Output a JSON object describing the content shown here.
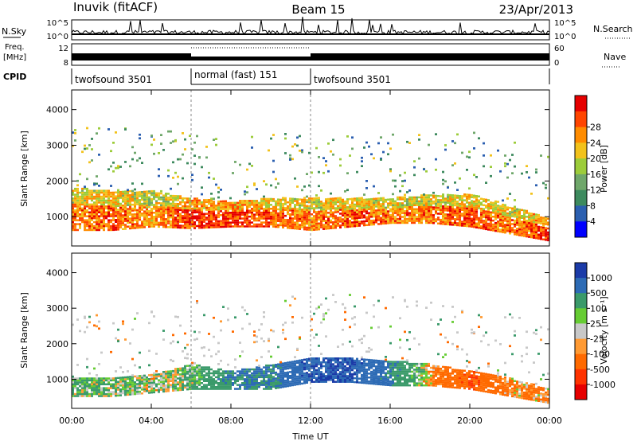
{
  "header": {
    "station": "Inuvik (fitACF)",
    "beam": "Beam 15",
    "date": "23/Apr/2013"
  },
  "top_panels": {
    "nsky_label": "N.Sky",
    "nsky_ticks": [
      "10^5",
      "10^0"
    ],
    "nsearch_label": "N.Search",
    "nsearch_ticks": [
      "10^5",
      "10^0"
    ],
    "freq_label_line1": "Freq.",
    "freq_label_line2": "[MHz]",
    "freq_ticks": [
      "12",
      "8"
    ],
    "nave_label": "Nave",
    "nave_ticks": [
      "60",
      "0"
    ],
    "cpid_label": "CPID",
    "cpid_segments": [
      {
        "label": "twofsound 3501",
        "start_hour": 0,
        "end_hour": 6
      },
      {
        "label": "normal (fast) 151",
        "start_hour": 6,
        "end_hour": 12
      },
      {
        "label": "twofsound 3501",
        "start_hour": 12,
        "end_hour": 24
      }
    ]
  },
  "colorbars": {
    "power": {
      "label": "Power [dB]",
      "ticks": [
        "4",
        "8",
        "12",
        "16",
        "20",
        "24",
        "28"
      ],
      "colors": [
        "#0000ff",
        "#2b5fb0",
        "#3d8a5e",
        "#6fa76a",
        "#9ccc3a",
        "#f2c21b",
        "#ff8c00",
        "#ff4500",
        "#e60000"
      ]
    },
    "velocity": {
      "label": "Velocity [m s⁻¹]",
      "ticks": [
        "1000",
        "500",
        "100",
        "25",
        "-25",
        "-100",
        "-500",
        "-1000"
      ],
      "colors": [
        "#1b3ba8",
        "#2d6bb5",
        "#3a9a6a",
        "#66cc33",
        "#c8c8c8",
        "#ff9a33",
        "#ff6a00",
        "#ff3300",
        "#e60000"
      ]
    }
  },
  "axes": {
    "ylabel": "Slant Range [km]",
    "yticks": [
      "1000",
      "2000",
      "3000",
      "4000"
    ],
    "xticks": [
      "00:00",
      "04:00",
      "08:00",
      "12:00",
      "16:00",
      "20:00",
      "00:00"
    ],
    "xlabel": "Time UT"
  },
  "chart_data": {
    "type": "heatmap",
    "title": "Inuvik (fitACF) Beam 15 23/Apr/2013",
    "xlabel": "Time UT",
    "ylabel": "Slant Range [km]",
    "xlim_hours": [
      0,
      24
    ],
    "ylim_km": [
      180,
      4550
    ],
    "panels": [
      {
        "quantity": "Power [dB]",
        "colorbar_range": [
          0,
          32
        ],
        "main_echo_band": [
          {
            "hour": 0,
            "min_km": 600,
            "max_km": 1800,
            "power_db": 24
          },
          {
            "hour": 2,
            "min_km": 600,
            "max_km": 1700,
            "power_db": 26
          },
          {
            "hour": 4,
            "min_km": 700,
            "max_km": 1700,
            "power_db": 22
          },
          {
            "hour": 6,
            "min_km": 650,
            "max_km": 1500,
            "power_db": 28
          },
          {
            "hour": 8,
            "min_km": 700,
            "max_km": 1400,
            "power_db": 28
          },
          {
            "hour": 10,
            "min_km": 700,
            "max_km": 1500,
            "power_db": 26
          },
          {
            "hour": 12,
            "min_km": 600,
            "max_km": 1500,
            "power_db": 24
          },
          {
            "hour": 14,
            "min_km": 700,
            "max_km": 1500,
            "power_db": 26
          },
          {
            "hour": 16,
            "min_km": 800,
            "max_km": 1500,
            "power_db": 24
          },
          {
            "hour": 18,
            "min_km": 800,
            "max_km": 1600,
            "power_db": 24
          },
          {
            "hour": 20,
            "min_km": 700,
            "max_km": 1600,
            "power_db": 26
          },
          {
            "hour": 22,
            "min_km": 500,
            "max_km": 1300,
            "power_db": 24
          },
          {
            "hour": 24,
            "min_km": 300,
            "max_km": 900,
            "power_db": 28
          }
        ]
      },
      {
        "quantity": "Velocity [m s⁻¹]",
        "colorbar_range": [
          -1000,
          1000
        ],
        "main_echo_band": [
          {
            "hour": 0,
            "min_km": 500,
            "max_km": 1000,
            "velocity": 100
          },
          {
            "hour": 2,
            "min_km": 500,
            "max_km": 1000,
            "velocity": 100
          },
          {
            "hour": 4,
            "min_km": 600,
            "max_km": 1100,
            "velocity": 25
          },
          {
            "hour": 6,
            "min_km": 700,
            "max_km": 1400,
            "velocity": 100
          },
          {
            "hour": 8,
            "min_km": 700,
            "max_km": 1200,
            "velocity": 500
          },
          {
            "hour": 10,
            "min_km": 700,
            "max_km": 1400,
            "velocity": 500
          },
          {
            "hour": 12,
            "min_km": 900,
            "max_km": 1600,
            "velocity": 1000
          },
          {
            "hour": 14,
            "min_km": 900,
            "max_km": 1600,
            "velocity": 1000
          },
          {
            "hour": 16,
            "min_km": 800,
            "max_km": 1500,
            "velocity": 500
          },
          {
            "hour": 18,
            "min_km": 800,
            "max_km": 1400,
            "velocity": -100
          },
          {
            "hour": 20,
            "min_km": 700,
            "max_km": 1200,
            "velocity": -500
          },
          {
            "hour": 22,
            "min_km": 500,
            "max_km": 1000,
            "velocity": -100
          },
          {
            "hour": 24,
            "min_km": 300,
            "max_km": 700,
            "velocity": -100
          }
        ]
      }
    ]
  }
}
